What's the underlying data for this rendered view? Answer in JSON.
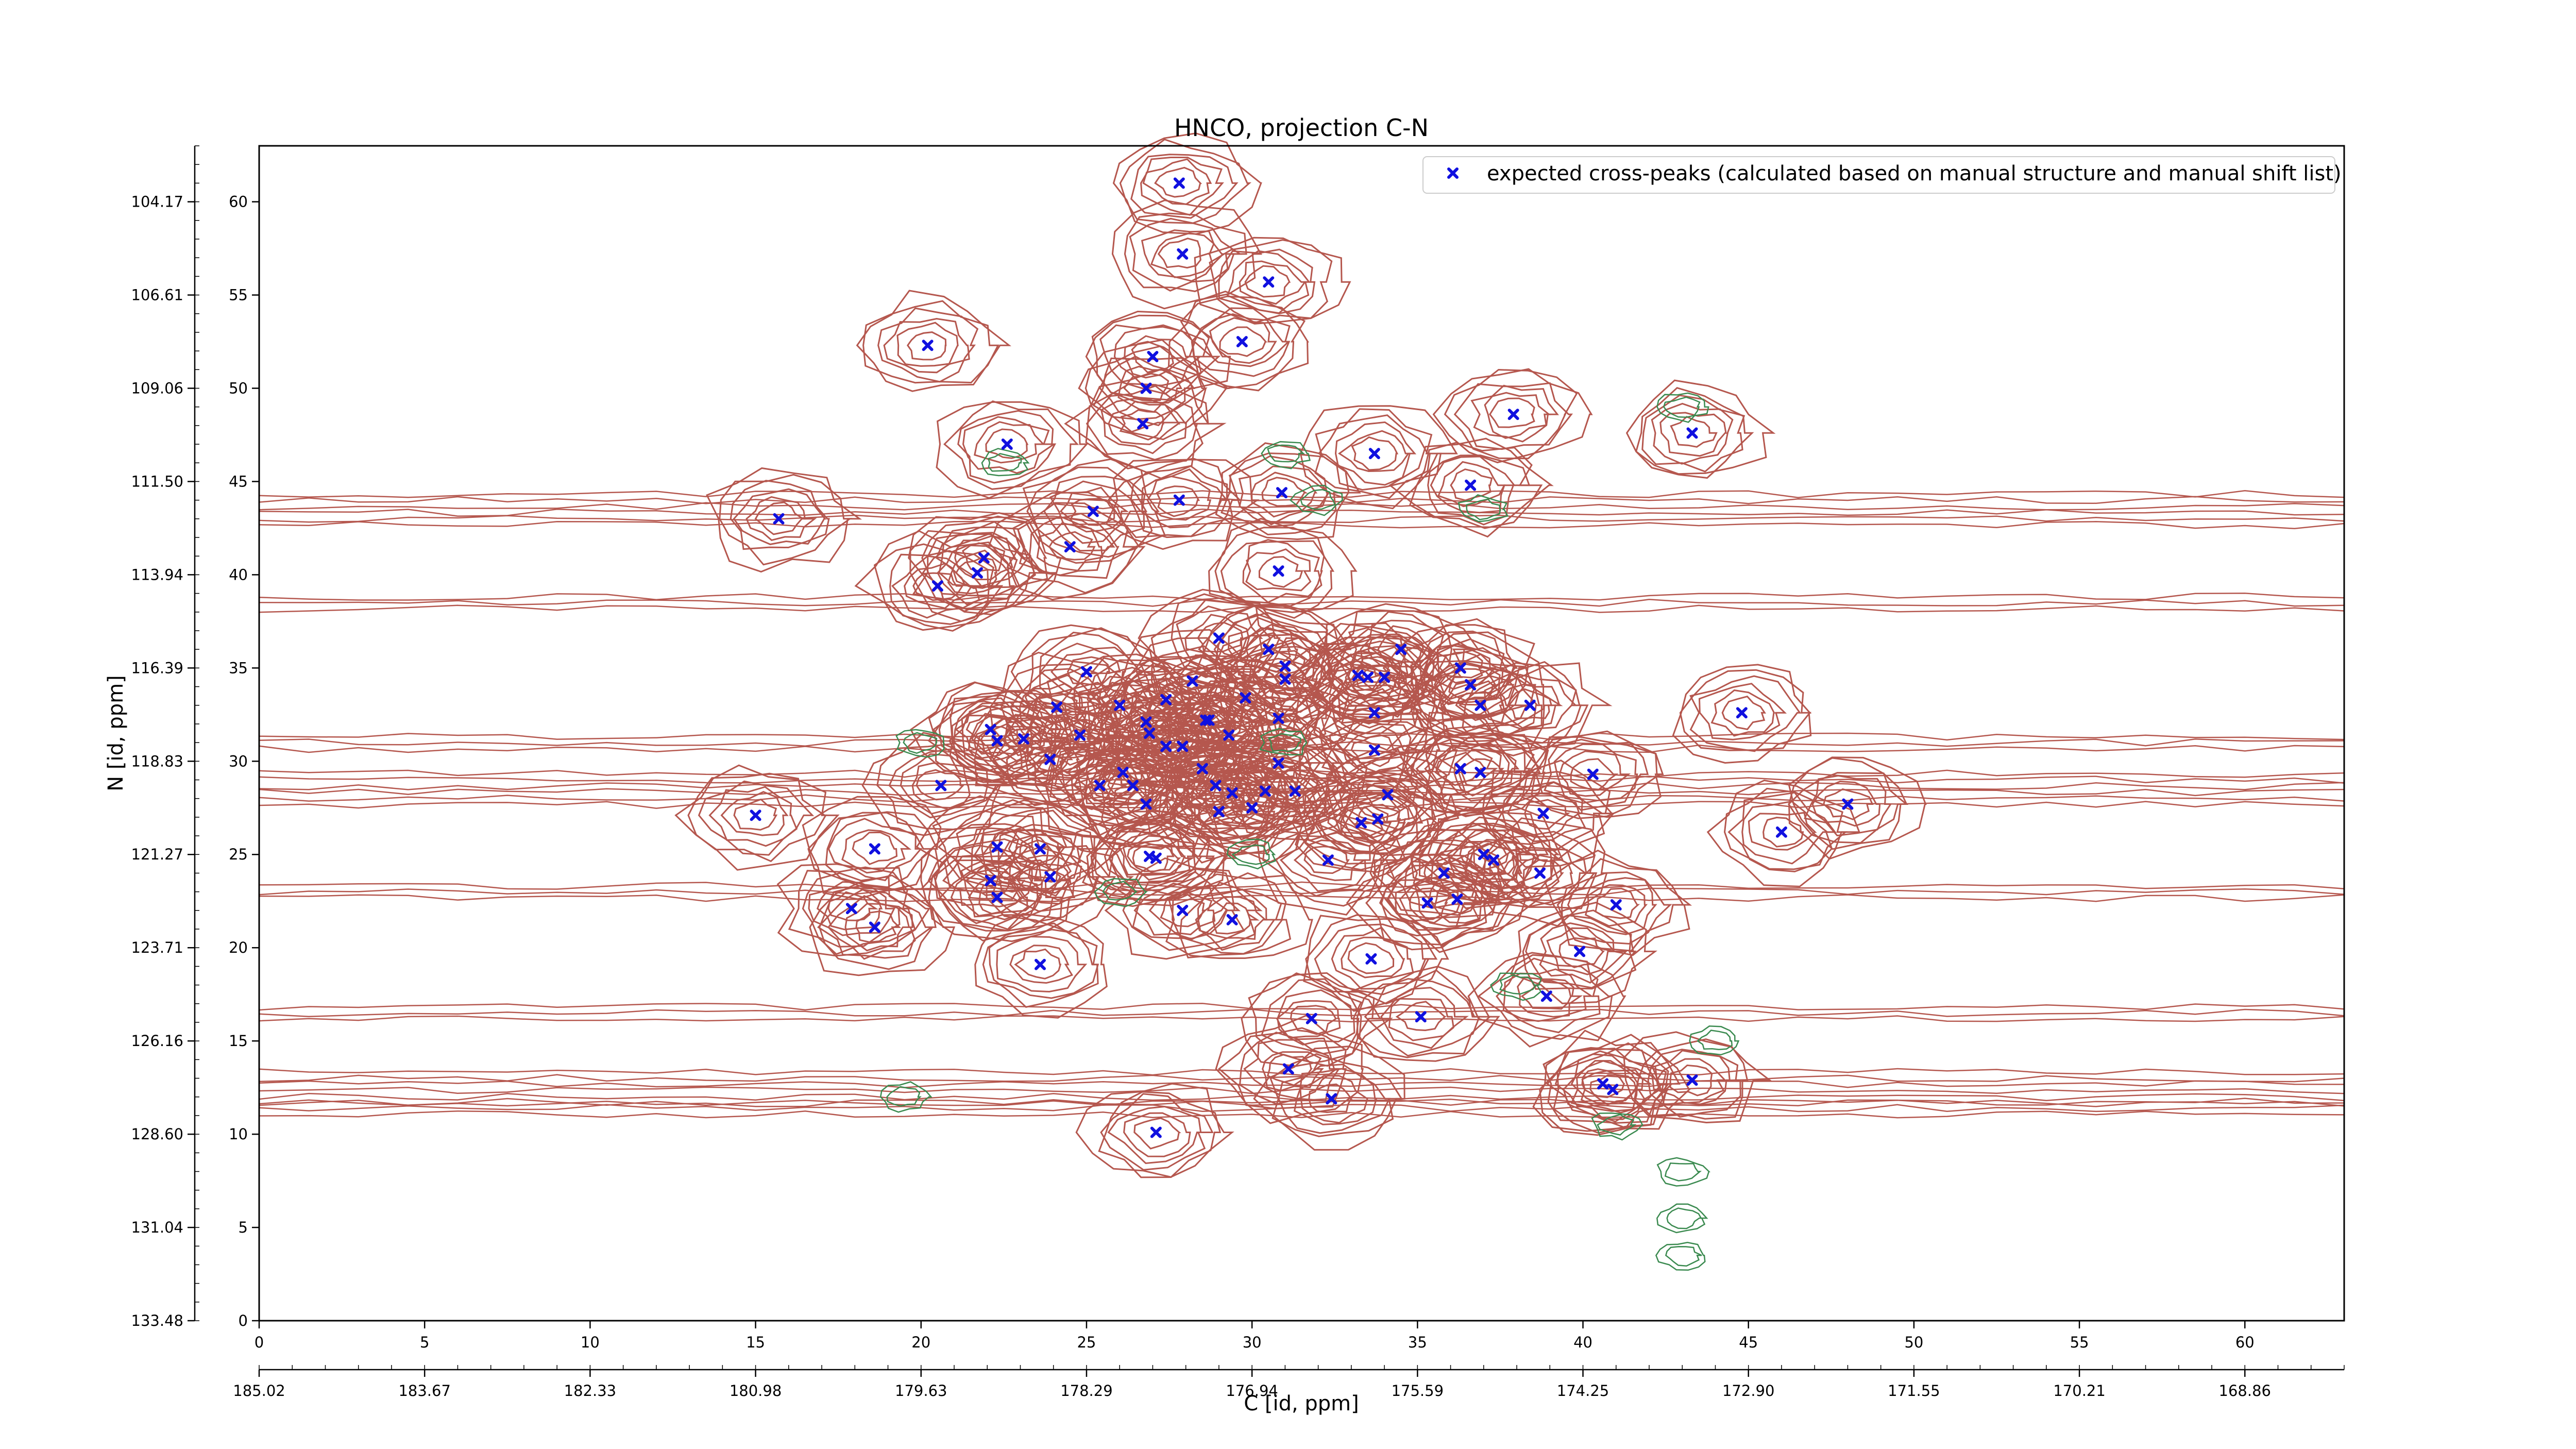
{
  "chart_data": {
    "type": "scatter",
    "title": "HNCO, projection C-N",
    "xlabel": "C [id, ppm]",
    "ylabel": "N [id, ppm]",
    "xlim": [
      0,
      63
    ],
    "ylim": [
      0,
      63
    ],
    "x_ticks": [
      0,
      5,
      10,
      15,
      20,
      25,
      30,
      35,
      40,
      45,
      50,
      55,
      60
    ],
    "y_ticks": [
      0,
      5,
      10,
      15,
      20,
      25,
      30,
      35,
      40,
      45,
      50,
      55,
      60
    ],
    "x_ppm_ticks": [
      "185.02",
      "183.67",
      "182.33",
      "180.98",
      "179.63",
      "178.29",
      "176.94",
      "175.59",
      "174.25",
      "172.90",
      "171.55",
      "170.21",
      "168.86"
    ],
    "y_ppm_ticks": [
      "133.48",
      "131.04",
      "128.60",
      "126.16",
      "123.71",
      "121.27",
      "118.83",
      "116.39",
      "113.94",
      "111.50",
      "109.06",
      "106.61",
      "104.17"
    ],
    "grid": false,
    "legend_position": "top-right",
    "colors": {
      "positive_contour": "#b5574e",
      "negative_contour": "#3a8a4f",
      "marker": "#1010e0",
      "axes": "#000000"
    },
    "series": [
      {
        "name": "expected cross-peaks (calculated based on manual structure and manual shift list)",
        "marker": "x",
        "color": "#1010e0",
        "points": [
          [
            27.8,
            61.0
          ],
          [
            27.9,
            57.2
          ],
          [
            30.5,
            55.7
          ],
          [
            29.7,
            52.5
          ],
          [
            20.2,
            52.3
          ],
          [
            27.0,
            51.7
          ],
          [
            26.8,
            50.0
          ],
          [
            26.7,
            48.1
          ],
          [
            22.6,
            47.0
          ],
          [
            37.9,
            48.6
          ],
          [
            43.3,
            47.6
          ],
          [
            33.7,
            46.5
          ],
          [
            36.6,
            44.8
          ],
          [
            30.9,
            44.4
          ],
          [
            27.8,
            44.0
          ],
          [
            25.2,
            43.4
          ],
          [
            15.7,
            43.0
          ],
          [
            24.5,
            41.5
          ],
          [
            21.9,
            40.9
          ],
          [
            21.7,
            40.1
          ],
          [
            20.5,
            39.4
          ],
          [
            30.8,
            40.2
          ],
          [
            29.0,
            36.6
          ],
          [
            30.5,
            36.0
          ],
          [
            31.0,
            35.1
          ],
          [
            34.5,
            36.0
          ],
          [
            33.5,
            34.5
          ],
          [
            36.3,
            35.0
          ],
          [
            25.0,
            34.8
          ],
          [
            28.2,
            34.3
          ],
          [
            31.0,
            34.4
          ],
          [
            33.2,
            34.6
          ],
          [
            36.6,
            34.1
          ],
          [
            34.0,
            34.5
          ],
          [
            36.9,
            33.0
          ],
          [
            27.4,
            33.3
          ],
          [
            28.7,
            32.2
          ],
          [
            29.8,
            33.4
          ],
          [
            26.0,
            33.0
          ],
          [
            24.1,
            32.9
          ],
          [
            38.4,
            33.0
          ],
          [
            44.8,
            32.6
          ],
          [
            22.1,
            31.7
          ],
          [
            23.1,
            31.2
          ],
          [
            22.3,
            31.1
          ],
          [
            24.8,
            31.4
          ],
          [
            26.8,
            32.1
          ],
          [
            26.9,
            31.5
          ],
          [
            28.6,
            32.2
          ],
          [
            29.3,
            31.4
          ],
          [
            33.7,
            32.6
          ],
          [
            30.8,
            32.3
          ],
          [
            27.9,
            30.8
          ],
          [
            23.9,
            30.1
          ],
          [
            26.1,
            29.4
          ],
          [
            27.4,
            30.8
          ],
          [
            28.5,
            29.6
          ],
          [
            30.8,
            29.9
          ],
          [
            33.7,
            30.6
          ],
          [
            36.3,
            29.6
          ],
          [
            25.4,
            28.7
          ],
          [
            26.4,
            28.7
          ],
          [
            28.9,
            28.7
          ],
          [
            29.4,
            28.3
          ],
          [
            30.4,
            28.4
          ],
          [
            31.3,
            28.4
          ],
          [
            34.1,
            28.2
          ],
          [
            36.9,
            29.4
          ],
          [
            40.3,
            29.3
          ],
          [
            20.6,
            28.7
          ],
          [
            26.8,
            27.7
          ],
          [
            29.0,
            27.3
          ],
          [
            30.0,
            27.5
          ],
          [
            33.3,
            26.7
          ],
          [
            33.8,
            26.9
          ],
          [
            38.8,
            27.2
          ],
          [
            48.0,
            27.7
          ],
          [
            15.0,
            27.1
          ],
          [
            46.0,
            26.2
          ],
          [
            18.6,
            25.3
          ],
          [
            22.3,
            25.4
          ],
          [
            23.6,
            25.3
          ],
          [
            26.9,
            24.9
          ],
          [
            27.1,
            24.8
          ],
          [
            32.3,
            24.7
          ],
          [
            37.0,
            25.0
          ],
          [
            37.3,
            24.7
          ],
          [
            38.7,
            24.0
          ],
          [
            35.8,
            24.0
          ],
          [
            22.1,
            23.6
          ],
          [
            23.9,
            23.8
          ],
          [
            35.3,
            22.4
          ],
          [
            36.2,
            22.6
          ],
          [
            17.9,
            22.1
          ],
          [
            22.3,
            22.7
          ],
          [
            27.9,
            22.0
          ],
          [
            29.4,
            21.5
          ],
          [
            41.0,
            22.3
          ],
          [
            18.6,
            21.1
          ],
          [
            23.6,
            19.1
          ],
          [
            33.6,
            19.4
          ],
          [
            39.9,
            19.8
          ],
          [
            38.9,
            17.4
          ],
          [
            31.8,
            16.2
          ],
          [
            35.1,
            16.3
          ],
          [
            31.1,
            13.5
          ],
          [
            40.6,
            12.7
          ],
          [
            43.3,
            12.9
          ],
          [
            40.9,
            12.4
          ],
          [
            32.4,
            11.9
          ],
          [
            27.1,
            10.1
          ]
        ]
      }
    ]
  }
}
